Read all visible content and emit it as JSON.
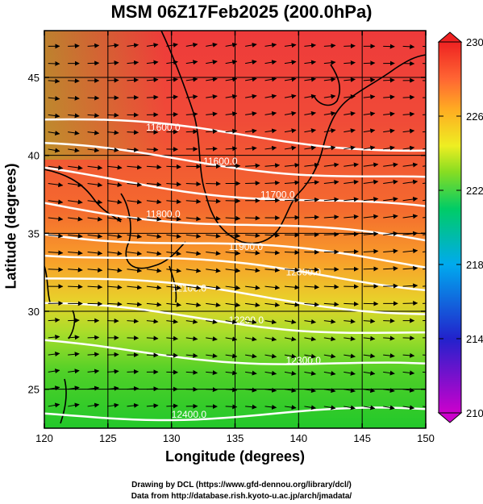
{
  "title": "MSM 06Z17Feb2025 (200.0hPa)",
  "chart_data": {
    "type": "heatmap",
    "title": "MSM 06Z17Feb2025 (200.0hPa)",
    "xlabel": "Longitude (degrees)",
    "ylabel": "Latitude  (degrees)",
    "xlim": [
      120,
      150
    ],
    "ylim": [
      22.5,
      48
    ],
    "xticks": [
      120,
      125,
      130,
      135,
      140,
      145,
      150
    ],
    "yticks": [
      25,
      30,
      35,
      40,
      45
    ],
    "colorbar": {
      "min": 210,
      "max": 230,
      "ticks": [
        210,
        214,
        218,
        222,
        226,
        230
      ],
      "colors": [
        "#cc00cc",
        "#2222cc",
        "#00aaee",
        "#00cc66",
        "#88dd22",
        "#eeee22",
        "#ffaa22",
        "#ff6633",
        "#ee2222"
      ]
    },
    "contours": [
      {
        "label": "11600.0",
        "lat_at_120": 42.3,
        "lat_at_150": 40.4
      },
      {
        "label": "11600.0",
        "lat_at_120": 40.5,
        "lat_at_150": 38.4
      },
      {
        "label": "11700.0",
        "lat_at_120": 38.9,
        "lat_at_150": 36.4
      },
      {
        "label": "11800.0",
        "lat_at_120": 36.9,
        "lat_at_150": 34.4
      },
      {
        "label": "11900.0",
        "lat_at_120": 35.2,
        "lat_at_150": 33.0
      },
      {
        "label": "12000.0",
        "lat_at_120": 33.9,
        "lat_at_150": 31.7
      },
      {
        "label": "12100.0",
        "lat_at_120": 32.2,
        "lat_at_150": 30.0
      },
      {
        "label": "12200.0",
        "lat_at_120": 30.3,
        "lat_at_150": 28.5
      },
      {
        "label": "12300.0",
        "lat_at_120": 27.8,
        "lat_at_150": 26.3
      },
      {
        "label": "12400.0",
        "lat_at_120": 23.3,
        "lat_at_150": 23.5
      }
    ],
    "wind": "westerly vectors"
  },
  "credits": {
    "line1": "Drawing by DCL (https://www.gfd-dennou.org/library/dcl/)",
    "line2": "Data from http://database.rish.kyoto-u.ac.jp/arch/jmadata/"
  }
}
